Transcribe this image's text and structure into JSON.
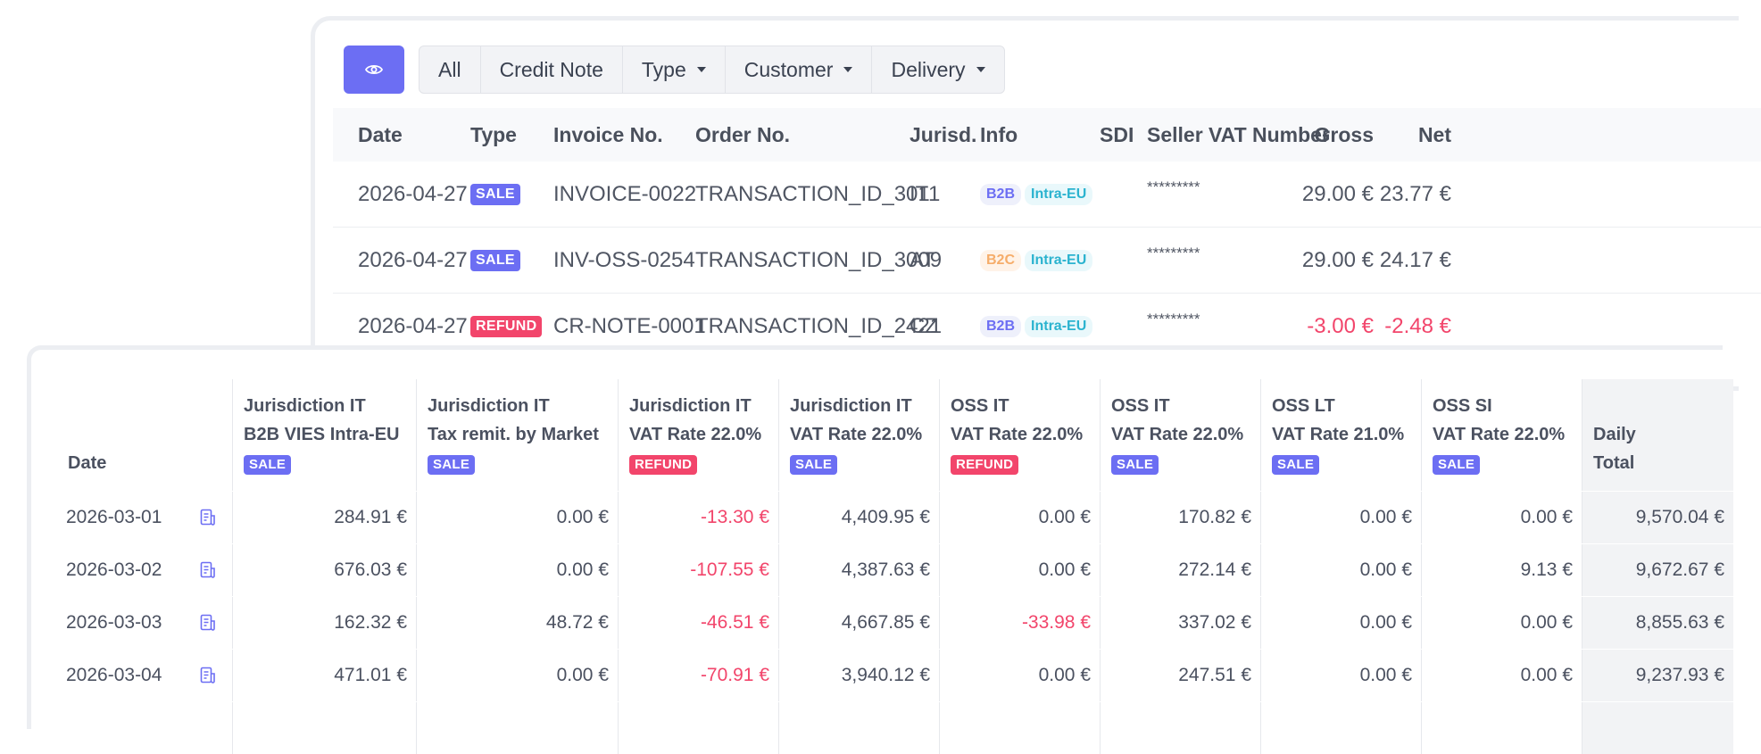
{
  "toolbar": {
    "filters": [
      "All",
      "Credit Note",
      "Type",
      "Customer",
      "Delivery"
    ]
  },
  "invoice_table": {
    "headers": {
      "date": "Date",
      "type": "Type",
      "invoice": "Invoice No.",
      "order": "Order No.",
      "jurisd": "Jurisd.",
      "info": "Info",
      "sdi": "SDI",
      "seller_vat": "Seller VAT Number",
      "gross": "Gross",
      "net": "Net"
    },
    "rows": [
      {
        "date": "2026-04-27",
        "type": "SALE",
        "invoice": "INVOICE-0022",
        "order": "TRANSACTION_ID_3011",
        "jurisd": "IT",
        "tag1": "B2B",
        "tag2": "Intra-EU",
        "seller_vat": "*********",
        "gross": "29.00 €",
        "net": "23.77 €"
      },
      {
        "date": "2026-04-27",
        "type": "SALE",
        "invoice": "INV-OSS-0254",
        "order": "TRANSACTION_ID_3009",
        "jurisd": "AT",
        "tag1": "B2C",
        "tag2": "Intra-EU",
        "seller_vat": "*********",
        "gross": "29.00 €",
        "net": "24.17 €"
      },
      {
        "date": "2026-04-27",
        "type": "REFUND",
        "invoice": "CR-NOTE-0001",
        "order": "TRANSACTION_ID_2421",
        "jurisd": "CZ",
        "tag1": "B2B",
        "tag2": "Intra-EU",
        "seller_vat": "*********",
        "gross": "-3.00 €",
        "net": "-2.48 €"
      }
    ]
  },
  "daily_table": {
    "date_header": "Date",
    "columns": [
      {
        "line1": "Jurisdiction IT",
        "line2": "B2B VIES Intra-EU",
        "badge": "SALE"
      },
      {
        "line1": "Jurisdiction IT",
        "line2": "Tax remit. by Market",
        "badge": "SALE"
      },
      {
        "line1": "Jurisdiction IT",
        "line2": "VAT Rate 22.0%",
        "badge": "REFUND"
      },
      {
        "line1": "Jurisdiction IT",
        "line2": "VAT Rate 22.0%",
        "badge": "SALE"
      },
      {
        "line1": "OSS IT",
        "line2": "VAT Rate 22.0%",
        "badge": "REFUND"
      },
      {
        "line1": "OSS IT",
        "line2": "VAT Rate 22.0%",
        "badge": "SALE"
      },
      {
        "line1": "OSS LT",
        "line2": "VAT Rate 21.0%",
        "badge": "SALE"
      },
      {
        "line1": "OSS SI",
        "line2": "VAT Rate 22.0%",
        "badge": "SALE"
      }
    ],
    "total_header": {
      "line1": "Daily",
      "line2": "Total"
    },
    "rows": [
      {
        "date": "2026-03-01",
        "values": [
          "284.91 €",
          "0.00 €",
          "-13.30 €",
          "4,409.95 €",
          "0.00 €",
          "170.82 €",
          "0.00 €",
          "0.00 €"
        ],
        "total": "9,570.04 €"
      },
      {
        "date": "2026-03-02",
        "values": [
          "676.03 €",
          "0.00 €",
          "-107.55 €",
          "4,387.63 €",
          "0.00 €",
          "272.14 €",
          "0.00 €",
          "9.13 €"
        ],
        "total": "9,672.67 €"
      },
      {
        "date": "2026-03-03",
        "values": [
          "162.32 €",
          "48.72 €",
          "-46.51 €",
          "4,667.85 €",
          "-33.98 €",
          "337.02 €",
          "0.00 €",
          "0.00 €"
        ],
        "total": "8,855.63 €"
      },
      {
        "date": "2026-03-04",
        "values": [
          "471.01 €",
          "0.00 €",
          "-70.91 €",
          "3,940.12 €",
          "0.00 €",
          "247.51 €",
          "0.00 €",
          "0.00 €"
        ],
        "total": "9,237.93 €"
      }
    ]
  },
  "colors": {
    "accent": "#6c6ef3",
    "refund": "#f2456b",
    "b2c": "#f6ad6a",
    "intra": "#2bb3cf"
  }
}
